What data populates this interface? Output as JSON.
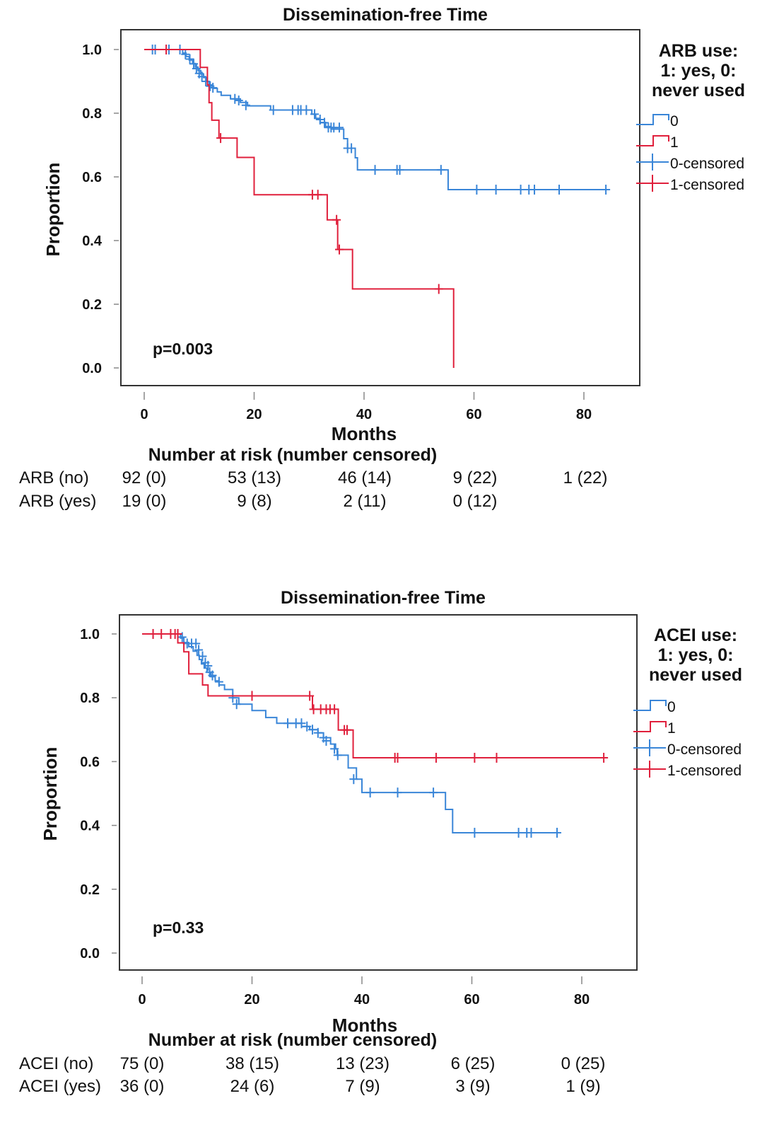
{
  "chart_data": [
    {
      "type": "line",
      "subtype": "kaplan-meier",
      "title": "Dissemination-free Time",
      "xlabel": "Months",
      "ylabel": "Proportion",
      "xlim": [
        0,
        84
      ],
      "ylim": [
        0,
        1.0
      ],
      "xticks": [
        "0",
        "20",
        "40",
        "60",
        "80"
      ],
      "yticks": [
        "0.0",
        "0.2",
        "0.4",
        "0.6",
        "0.8",
        "1.0"
      ],
      "grid": false,
      "annotation": "p=0.003",
      "legend": {
        "position": "right",
        "title_lines": [
          "ARB use:",
          "1: yes, 0:",
          "never used"
        ],
        "items": [
          "0",
          "1",
          "0-censored",
          "1-censored"
        ]
      },
      "series": [
        {
          "name": "0",
          "color": "#3a86d8",
          "steps": [
            [
              0,
              1.0
            ],
            [
              7,
              0.989
            ],
            [
              7.6,
              0.978
            ],
            [
              8.2,
              0.967
            ],
            [
              8.8,
              0.956
            ],
            [
              9.3,
              0.945
            ],
            [
              9.8,
              0.934
            ],
            [
              10.3,
              0.923
            ],
            [
              10.8,
              0.912
            ],
            [
              11.3,
              0.9
            ],
            [
              11.8,
              0.889
            ],
            [
              12.5,
              0.878
            ],
            [
              13.3,
              0.867
            ],
            [
              14,
              0.856
            ],
            [
              15.7,
              0.845
            ],
            [
              17.5,
              0.834
            ],
            [
              18.8,
              0.823
            ],
            [
              23,
              0.81
            ],
            [
              30.5,
              0.797
            ],
            [
              31.2,
              0.784
            ],
            [
              32,
              0.771
            ],
            [
              33,
              0.758
            ],
            [
              34,
              0.75
            ],
            [
              36.3,
              0.72
            ],
            [
              37,
              0.69
            ],
            [
              38.4,
              0.66
            ],
            [
              38.8,
              0.622
            ],
            [
              55.3,
              0.56
            ],
            [
              84,
              0.56
            ]
          ],
          "censored": [
            [
              1.5,
              1.0
            ],
            [
              2,
              1.0
            ],
            [
              4.5,
              1.0
            ],
            [
              6.5,
              1.0
            ],
            [
              7.5,
              0.985
            ],
            [
              8.3,
              0.97
            ],
            [
              9,
              0.955
            ],
            [
              9.5,
              0.94
            ],
            [
              10,
              0.925
            ],
            [
              10.5,
              0.915
            ],
            [
              11.2,
              0.9
            ],
            [
              12,
              0.885
            ],
            [
              12.5,
              0.88
            ],
            [
              16.5,
              0.845
            ],
            [
              17.2,
              0.84
            ],
            [
              18.5,
              0.825
            ],
            [
              23.5,
              0.81
            ],
            [
              27,
              0.81
            ],
            [
              28,
              0.81
            ],
            [
              28.5,
              0.81
            ],
            [
              29.5,
              0.81
            ],
            [
              31,
              0.797
            ],
            [
              32,
              0.78
            ],
            [
              32.8,
              0.77
            ],
            [
              33.5,
              0.755
            ],
            [
              34,
              0.755
            ],
            [
              34.5,
              0.755
            ],
            [
              35.5,
              0.755
            ],
            [
              37,
              0.69
            ],
            [
              37.7,
              0.69
            ],
            [
              42,
              0.622
            ],
            [
              46,
              0.622
            ],
            [
              46.5,
              0.622
            ],
            [
              54,
              0.622
            ],
            [
              60.5,
              0.56
            ],
            [
              64,
              0.56
            ],
            [
              68.5,
              0.56
            ],
            [
              70,
              0.56
            ],
            [
              71,
              0.56
            ],
            [
              75.5,
              0.56
            ],
            [
              84,
              0.56
            ]
          ]
        },
        {
          "name": "1",
          "color": "#e0203c",
          "steps": [
            [
              0,
              1.0
            ],
            [
              10.2,
              0.944
            ],
            [
              11.5,
              0.889
            ],
            [
              11.8,
              0.833
            ],
            [
              12.3,
              0.778
            ],
            [
              13.6,
              0.722
            ],
            [
              16.9,
              0.661
            ],
            [
              20,
              0.544
            ],
            [
              33.3,
              0.465
            ],
            [
              35.2,
              0.372
            ],
            [
              37.9,
              0.248
            ],
            [
              56.3,
              0.0
            ]
          ],
          "censored": [
            [
              4,
              1.0
            ],
            [
              13.9,
              0.722
            ],
            [
              30.6,
              0.544
            ],
            [
              31.6,
              0.544
            ],
            [
              35,
              0.465
            ],
            [
              35.5,
              0.372
            ],
            [
              53.6,
              0.248
            ]
          ]
        }
      ],
      "risk_table": {
        "title": "Number at risk (number censored)",
        "times": [
          0,
          20,
          40,
          60,
          80
        ],
        "rows": [
          {
            "label": "ARB (no)",
            "values": [
              "92 (0)",
              "53 (13)",
              "46 (14)",
              "9 (22)",
              "1 (22)"
            ]
          },
          {
            "label": "ARB (yes)",
            "values": [
              "19 (0)",
              "9 (8)",
              "2 (11)",
              "0 (12)",
              ""
            ]
          }
        ]
      }
    },
    {
      "type": "line",
      "subtype": "kaplan-meier",
      "title": "Dissemination-free Time",
      "xlabel": "Months",
      "ylabel": "Proportion",
      "xlim": [
        0,
        84
      ],
      "ylim": [
        0,
        1.0
      ],
      "xticks": [
        "0",
        "20",
        "40",
        "60",
        "80"
      ],
      "yticks": [
        "0.0",
        "0.2",
        "0.4",
        "0.6",
        "0.8",
        "1.0"
      ],
      "grid": false,
      "annotation": "p=0.33",
      "legend": {
        "position": "right",
        "title_lines": [
          "ACEI use:",
          "1: yes, 0:",
          "never used"
        ],
        "items": [
          "0",
          "1",
          "0-censored",
          "1-censored"
        ]
      },
      "series": [
        {
          "name": "0",
          "color": "#3a86d8",
          "steps": [
            [
              0,
              1.0
            ],
            [
              7,
              0.987
            ],
            [
              7.6,
              0.973
            ],
            [
              8.5,
              0.96
            ],
            [
              9.3,
              0.946
            ],
            [
              10,
              0.933
            ],
            [
              10.4,
              0.92
            ],
            [
              10.8,
              0.906
            ],
            [
              11.3,
              0.893
            ],
            [
              11.8,
              0.88
            ],
            [
              12.5,
              0.866
            ],
            [
              13.3,
              0.853
            ],
            [
              14,
              0.84
            ],
            [
              15,
              0.826
            ],
            [
              16.5,
              0.8
            ],
            [
              17.6,
              0.78
            ],
            [
              20,
              0.76
            ],
            [
              22.5,
              0.738
            ],
            [
              24.5,
              0.72
            ],
            [
              29,
              0.71
            ],
            [
              30.5,
              0.7
            ],
            [
              32,
              0.69
            ],
            [
              33,
              0.675
            ],
            [
              34.3,
              0.655
            ],
            [
              35.2,
              0.64
            ],
            [
              35.5,
              0.62
            ],
            [
              37.5,
              0.58
            ],
            [
              39,
              0.545
            ],
            [
              40,
              0.503
            ],
            [
              55.2,
              0.45
            ],
            [
              56.5,
              0.377
            ],
            [
              76,
              0.377
            ]
          ],
          "censored": [
            [
              2,
              1.0
            ],
            [
              6.5,
              1.0
            ],
            [
              7.3,
              0.99
            ],
            [
              8.2,
              0.97
            ],
            [
              9,
              0.97
            ],
            [
              9.8,
              0.97
            ],
            [
              10.3,
              0.95
            ],
            [
              11,
              0.93
            ],
            [
              11.5,
              0.91
            ],
            [
              12,
              0.9
            ],
            [
              12.3,
              0.88
            ],
            [
              12.8,
              0.87
            ],
            [
              14,
              0.85
            ],
            [
              16.5,
              0.8
            ],
            [
              17.2,
              0.78
            ],
            [
              26.5,
              0.72
            ],
            [
              28,
              0.72
            ],
            [
              29,
              0.72
            ],
            [
              30,
              0.71
            ],
            [
              31,
              0.7
            ],
            [
              32,
              0.69
            ],
            [
              33,
              0.675
            ],
            [
              33.5,
              0.665
            ],
            [
              35,
              0.64
            ],
            [
              35.6,
              0.62
            ],
            [
              38.5,
              0.545
            ],
            [
              41.5,
              0.503
            ],
            [
              46.5,
              0.503
            ],
            [
              53,
              0.503
            ],
            [
              60.5,
              0.377
            ],
            [
              68.5,
              0.377
            ],
            [
              70,
              0.377
            ],
            [
              70.8,
              0.377
            ],
            [
              75.5,
              0.377
            ]
          ]
        },
        {
          "name": "1",
          "color": "#e0203c",
          "steps": [
            [
              0,
              1.0
            ],
            [
              6.5,
              0.972
            ],
            [
              7.6,
              0.944
            ],
            [
              8.5,
              0.875
            ],
            [
              11,
              0.84
            ],
            [
              12,
              0.806
            ],
            [
              31,
              0.764
            ],
            [
              35.7,
              0.699
            ],
            [
              38.4,
              0.612
            ],
            [
              84,
              0.612
            ]
          ],
          "censored": [
            [
              2,
              1.0
            ],
            [
              3.5,
              1.0
            ],
            [
              5.2,
              1.0
            ],
            [
              6,
              1.0
            ],
            [
              6.5,
              1.0
            ],
            [
              20,
              0.806
            ],
            [
              30.5,
              0.806
            ],
            [
              31.2,
              0.764
            ],
            [
              32.5,
              0.764
            ],
            [
              33.5,
              0.764
            ],
            [
              34.2,
              0.764
            ],
            [
              35,
              0.764
            ],
            [
              36.8,
              0.699
            ],
            [
              37.3,
              0.699
            ],
            [
              46,
              0.612
            ],
            [
              46.5,
              0.612
            ],
            [
              53.5,
              0.612
            ],
            [
              60.5,
              0.612
            ],
            [
              64.5,
              0.612
            ],
            [
              84,
              0.612
            ]
          ]
        }
      ],
      "risk_table": {
        "title": "Number at risk (number censored)",
        "times": [
          0,
          20,
          40,
          60,
          80
        ],
        "rows": [
          {
            "label": "ACEI (no)",
            "values": [
              "75 (0)",
              "38 (15)",
              "13 (23)",
              "6 (25)",
              "0 (25)"
            ]
          },
          {
            "label": "ACEI (yes)",
            "values": [
              "36 (0)",
              "24 (6)",
              "7 (9)",
              "3 (9)",
              "1 (9)"
            ]
          }
        ]
      }
    }
  ]
}
